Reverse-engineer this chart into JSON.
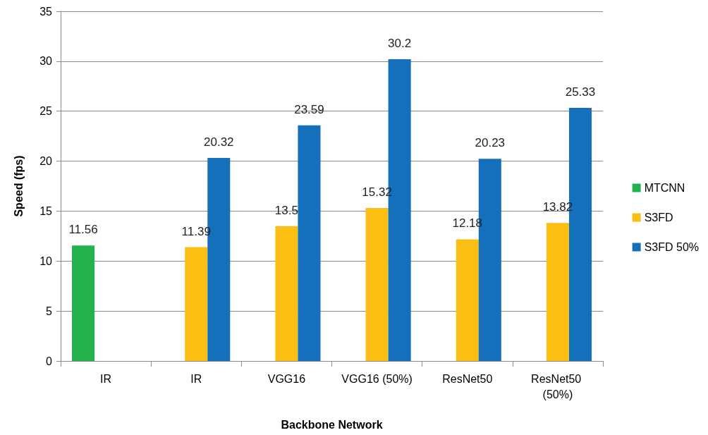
{
  "chart_data": {
    "type": "bar",
    "xlabel": "Backbone Network",
    "ylabel": "Speed (fps)",
    "categories": [
      "IR",
      "IR",
      "VGG16",
      "VGG16 (50%)",
      "ResNet50",
      "ResNet50 (50%)"
    ],
    "series": [
      {
        "name": "MTCNN",
        "color": "#22b14c",
        "values": [
          11.56,
          null,
          null,
          null,
          null,
          null
        ]
      },
      {
        "name": "S3FD",
        "color": "#fbbf14",
        "values": [
          null,
          11.39,
          13.5,
          15.32,
          12.18,
          13.82
        ]
      },
      {
        "name": "S3FD 50%",
        "color": "#1570bc",
        "values": [
          null,
          20.32,
          23.59,
          30.2,
          20.23,
          25.33
        ]
      }
    ],
    "ylim": [
      0,
      35
    ],
    "yticks": [
      0,
      5,
      10,
      15,
      20,
      25,
      30,
      35
    ],
    "grid": "y",
    "legend": "right",
    "data_labels": true
  }
}
